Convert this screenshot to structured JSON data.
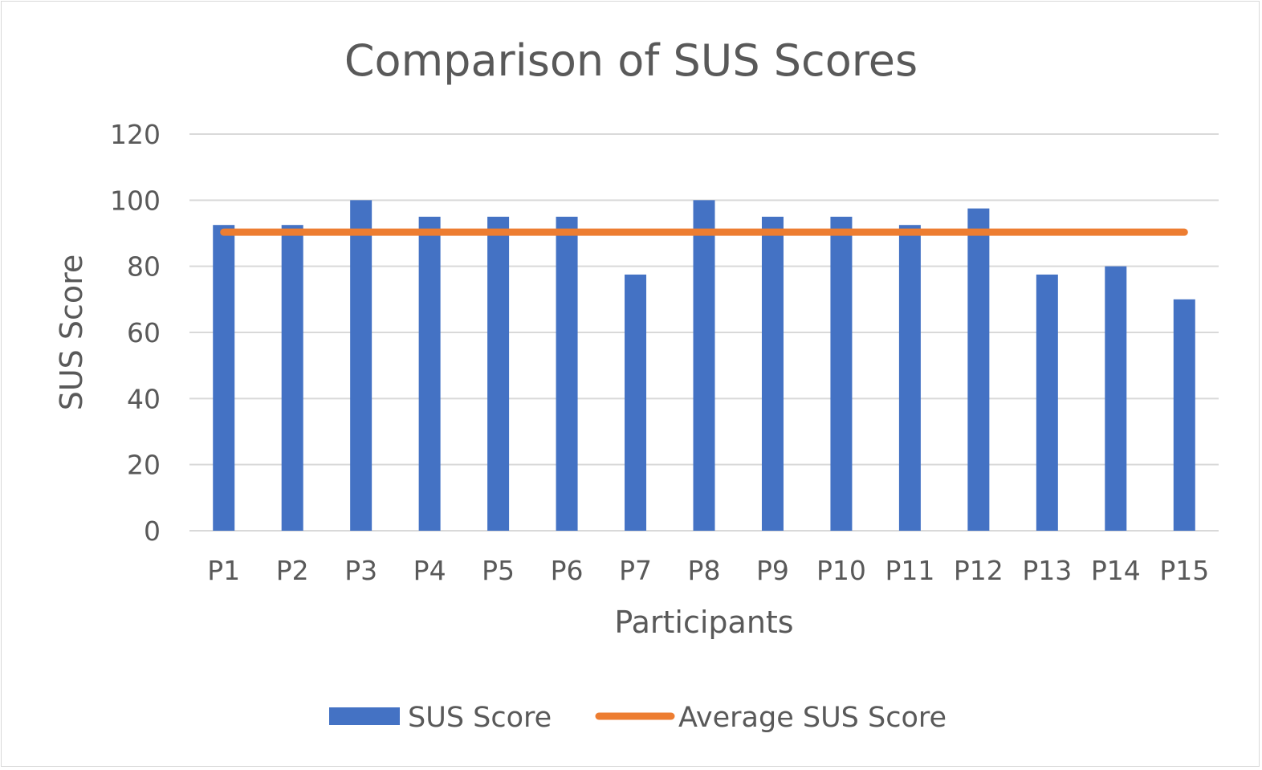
{
  "chart_data": {
    "type": "bar",
    "title": "Comparison of SUS Scores",
    "xlabel": "Participants",
    "ylabel": "SUS Score",
    "categories": [
      "P1",
      "P2",
      "P3",
      "P4",
      "P5",
      "P6",
      "P7",
      "P8",
      "P9",
      "P10",
      "P11",
      "P12",
      "P13",
      "P14",
      "P15"
    ],
    "series": [
      {
        "name": "SUS Score",
        "kind": "bar",
        "color": "#4472C4",
        "values": [
          92.5,
          92.5,
          100,
          95,
          95,
          95,
          77.5,
          100,
          95,
          95,
          92.5,
          97.5,
          77.5,
          80,
          70
        ]
      },
      {
        "name": "Average SUS Score",
        "kind": "line",
        "color": "#ED7D31",
        "values": [
          90.33,
          90.33,
          90.33,
          90.33,
          90.33,
          90.33,
          90.33,
          90.33,
          90.33,
          90.33,
          90.33,
          90.33,
          90.33,
          90.33,
          90.33
        ]
      }
    ],
    "ylim": [
      0,
      120
    ],
    "yticks": [
      0,
      20,
      40,
      60,
      80,
      100,
      120
    ],
    "grid": true,
    "legend": "bottom"
  }
}
